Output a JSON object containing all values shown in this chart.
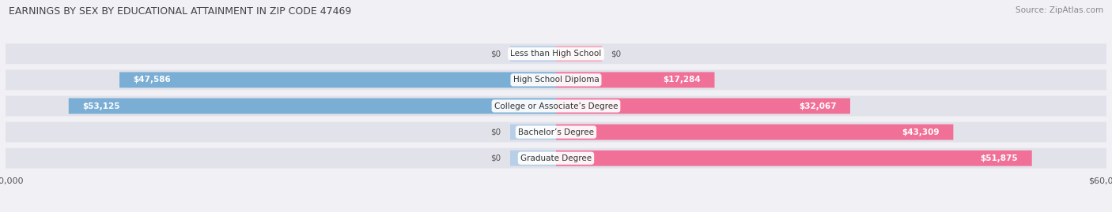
{
  "title": "EARNINGS BY SEX BY EDUCATIONAL ATTAINMENT IN ZIP CODE 47469",
  "source": "Source: ZipAtlas.com",
  "categories": [
    "Less than High School",
    "High School Diploma",
    "College or Associate’s Degree",
    "Bachelor’s Degree",
    "Graduate Degree"
  ],
  "male_values": [
    0,
    47586,
    53125,
    0,
    0
  ],
  "female_values": [
    0,
    17284,
    32067,
    43309,
    51875
  ],
  "male_labels": [
    "$0",
    "$47,586",
    "$53,125",
    "$0",
    "$0"
  ],
  "female_labels": [
    "$0",
    "$17,284",
    "$32,067",
    "$43,309",
    "$51,875"
  ],
  "male_bar_color": "#7aaed4",
  "female_bar_color": "#f07098",
  "male_stub_color": "#b8cfe8",
  "female_stub_color": "#f5aac0",
  "axis_max": 60000,
  "stub_size": 5000,
  "background_color": "#f0f0f5",
  "bar_bg_color": "#e2e2ea",
  "title_fontsize": 9.0,
  "source_fontsize": 7.5,
  "label_fontsize": 7.5,
  "cat_fontsize": 7.5,
  "legend_fontsize": 8,
  "axis_label_fontsize": 8
}
